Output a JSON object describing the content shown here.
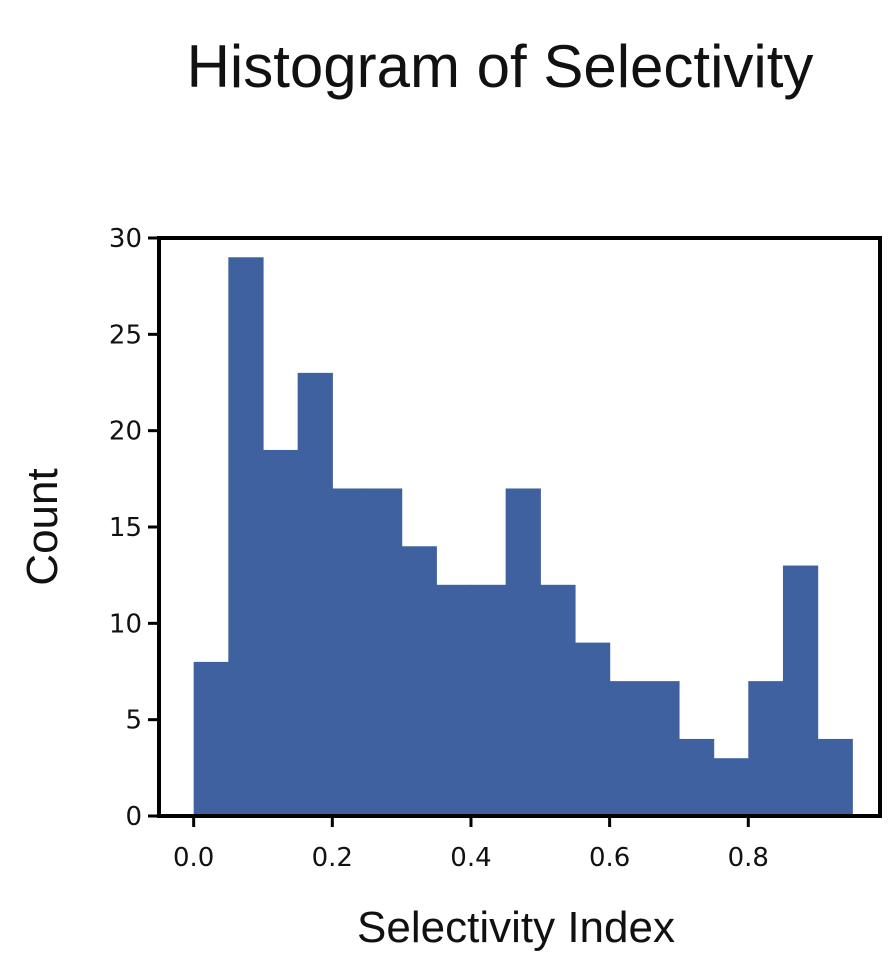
{
  "chart_data": {
    "type": "bar",
    "title": "Histogram of Selectivity",
    "xlabel": "Selectivity Index",
    "ylabel": "Count",
    "bin_width": 0.05,
    "bin_starts": [
      0.0,
      0.05,
      0.1,
      0.15,
      0.2,
      0.25,
      0.3,
      0.35,
      0.4,
      0.45,
      0.5,
      0.55,
      0.6,
      0.65,
      0.7,
      0.75,
      0.8,
      0.85,
      0.9
    ],
    "values": [
      8,
      29,
      19,
      23,
      17,
      17,
      14,
      12,
      12,
      17,
      12,
      9,
      7,
      7,
      4,
      3,
      7,
      13,
      4
    ],
    "xlim": [
      -0.05,
      0.99
    ],
    "ylim": [
      0,
      30
    ],
    "xticks": [
      0.0,
      0.2,
      0.4,
      0.6,
      0.8
    ],
    "xtick_labels": [
      "0.0",
      "0.2",
      "0.4",
      "0.6",
      "0.8"
    ],
    "yticks": [
      0,
      5,
      10,
      15,
      20,
      25,
      30
    ],
    "ytick_labels": [
      "0",
      "5",
      "10",
      "15",
      "20",
      "25",
      "30"
    ],
    "bar_color": "#3f61a0",
    "grid": false,
    "legend": "none"
  }
}
